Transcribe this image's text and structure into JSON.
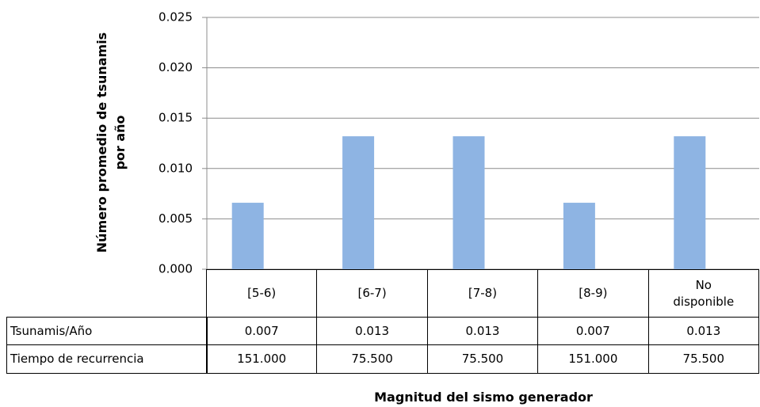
{
  "chart_data": {
    "type": "bar",
    "y_label": "Número promedio de tsunamis por año",
    "x_label": "Magnitud del sismo generador",
    "categories": [
      "[5-6)",
      "[6-7)",
      "[7-8)",
      "[8-9)",
      "No disponible"
    ],
    "series": [
      {
        "name": "Tsunamis/Año",
        "color": "#8eb4e3",
        "values": [
          0.0066,
          0.0132,
          0.0132,
          0.0066,
          0.0132
        ],
        "value_labels": [
          "0.007",
          "0.013",
          "0.013",
          "0.007",
          "0.013"
        ]
      }
    ],
    "table_rows": [
      {
        "name": "Tiempo de recurrencia",
        "values": [
          151,
          75.5,
          75.5,
          151,
          75.5
        ],
        "value_labels": [
          "151.000",
          "75.500",
          "75.500",
          "151.000",
          "75.500"
        ]
      }
    ],
    "ylim": [
      0,
      0.025
    ],
    "yticks": [
      {
        "value": 0,
        "label": "0.000"
      },
      {
        "value": 0.005,
        "label": "0.005"
      },
      {
        "value": 0.01,
        "label": "0.010"
      },
      {
        "value": 0.015,
        "label": "0.015"
      },
      {
        "value": 0.02,
        "label": "0.020"
      },
      {
        "value": 0.025,
        "label": "0.025"
      }
    ],
    "grid": true
  }
}
